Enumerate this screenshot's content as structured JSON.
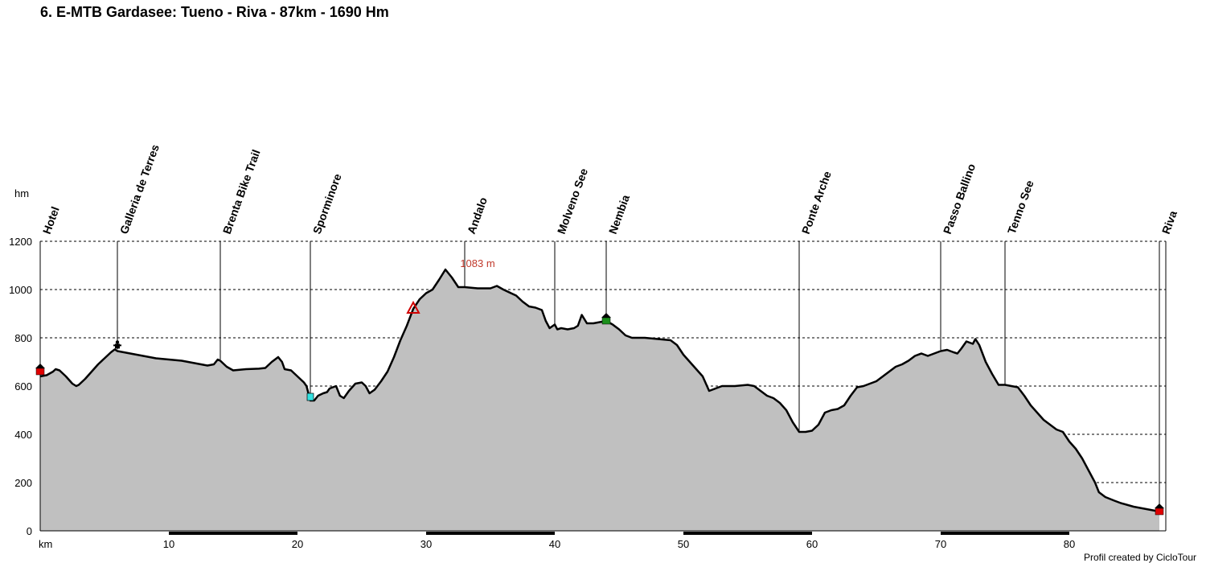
{
  "chart_data": {
    "type": "area",
    "title": "6. E-MTB Gardasee: Tueno - Riva - 87km - 1690 Hm",
    "xlabel": "km",
    "ylabel": "hm",
    "xlim": [
      0,
      87.5
    ],
    "ylim": [
      0,
      1200
    ],
    "x_ticks": [
      10,
      20,
      30,
      40,
      50,
      60,
      70,
      80
    ],
    "y_ticks": [
      0,
      200,
      400,
      600,
      800,
      1000,
      1200
    ],
    "grid": "horizontal-dashed",
    "fill_color": "#c0c0c0",
    "line_color": "#000000",
    "profile": [
      [
        0,
        640
      ],
      [
        0.5,
        645
      ],
      [
        1,
        660
      ],
      [
        1.2,
        670
      ],
      [
        1.5,
        665
      ],
      [
        2,
        640
      ],
      [
        2.5,
        610
      ],
      [
        2.8,
        600
      ],
      [
        3,
        605
      ],
      [
        3.5,
        630
      ],
      [
        4,
        660
      ],
      [
        4.5,
        690
      ],
      [
        5,
        715
      ],
      [
        5.5,
        740
      ],
      [
        5.8,
        752
      ],
      [
        6,
        745
      ],
      [
        6.5,
        740
      ],
      [
        7,
        735
      ],
      [
        8,
        725
      ],
      [
        9,
        715
      ],
      [
        10,
        710
      ],
      [
        11,
        705
      ],
      [
        12,
        695
      ],
      [
        13,
        685
      ],
      [
        13.5,
        690
      ],
      [
        13.8,
        710
      ],
      [
        14,
        705
      ],
      [
        14.5,
        680
      ],
      [
        15,
        665
      ],
      [
        16,
        670
      ],
      [
        17,
        672
      ],
      [
        17.5,
        675
      ],
      [
        18,
        700
      ],
      [
        18.5,
        720
      ],
      [
        18.8,
        700
      ],
      [
        19,
        670
      ],
      [
        19.5,
        665
      ],
      [
        20,
        640
      ],
      [
        20.5,
        615
      ],
      [
        20.7,
        600
      ],
      [
        21,
        540
      ],
      [
        21.3,
        540
      ],
      [
        21.6,
        560
      ],
      [
        22,
        570
      ],
      [
        22.3,
        575
      ],
      [
        22.5,
        590
      ],
      [
        23,
        600
      ],
      [
        23.3,
        560
      ],
      [
        23.6,
        550
      ],
      [
        24,
        580
      ],
      [
        24.5,
        610
      ],
      [
        25,
        615
      ],
      [
        25.3,
        600
      ],
      [
        25.6,
        570
      ],
      [
        26,
        585
      ],
      [
        26.5,
        620
      ],
      [
        27,
        660
      ],
      [
        27.5,
        720
      ],
      [
        28,
        790
      ],
      [
        28.5,
        850
      ],
      [
        29,
        920
      ],
      [
        29.5,
        960
      ],
      [
        30,
        985
      ],
      [
        30.5,
        1000
      ],
      [
        31,
        1040
      ],
      [
        31.5,
        1083
      ],
      [
        32,
        1050
      ],
      [
        32.5,
        1010
      ],
      [
        33,
        1010
      ],
      [
        34,
        1005
      ],
      [
        35,
        1005
      ],
      [
        35.5,
        1015
      ],
      [
        36,
        1000
      ],
      [
        37,
        975
      ],
      [
        37.5,
        950
      ],
      [
        38,
        930
      ],
      [
        38.5,
        925
      ],
      [
        39,
        915
      ],
      [
        39.3,
        870
      ],
      [
        39.6,
        840
      ],
      [
        40,
        855
      ],
      [
        40.2,
        835
      ],
      [
        40.5,
        840
      ],
      [
        41,
        835
      ],
      [
        41.5,
        840
      ],
      [
        41.8,
        850
      ],
      [
        42.1,
        895
      ],
      [
        42.5,
        860
      ],
      [
        43,
        860
      ],
      [
        43.5,
        865
      ],
      [
        44,
        870
      ],
      [
        44.5,
        855
      ],
      [
        45,
        835
      ],
      [
        45.5,
        810
      ],
      [
        46,
        800
      ],
      [
        47,
        800
      ],
      [
        48,
        795
      ],
      [
        49,
        790
      ],
      [
        49.5,
        770
      ],
      [
        50,
        730
      ],
      [
        50.5,
        700
      ],
      [
        51,
        670
      ],
      [
        51.5,
        640
      ],
      [
        52,
        580
      ],
      [
        52.5,
        590
      ],
      [
        53,
        600
      ],
      [
        54,
        600
      ],
      [
        55,
        605
      ],
      [
        55.5,
        600
      ],
      [
        56,
        580
      ],
      [
        56.5,
        560
      ],
      [
        57,
        550
      ],
      [
        57.5,
        530
      ],
      [
        58,
        500
      ],
      [
        58.5,
        450
      ],
      [
        59,
        410
      ],
      [
        59.5,
        410
      ],
      [
        60,
        415
      ],
      [
        60.5,
        440
      ],
      [
        61,
        490
      ],
      [
        61.5,
        500
      ],
      [
        62,
        505
      ],
      [
        62.5,
        520
      ],
      [
        63,
        560
      ],
      [
        63.5,
        595
      ],
      [
        64,
        600
      ],
      [
        64.5,
        610
      ],
      [
        65,
        620
      ],
      [
        65.5,
        640
      ],
      [
        66,
        660
      ],
      [
        66.5,
        680
      ],
      [
        67,
        690
      ],
      [
        67.5,
        705
      ],
      [
        68,
        725
      ],
      [
        68.5,
        735
      ],
      [
        69,
        725
      ],
      [
        69.5,
        735
      ],
      [
        70,
        745
      ],
      [
        70.5,
        750
      ],
      [
        71,
        740
      ],
      [
        71.3,
        735
      ],
      [
        71.6,
        755
      ],
      [
        72,
        785
      ],
      [
        72.5,
        775
      ],
      [
        72.7,
        795
      ],
      [
        73,
        770
      ],
      [
        73.5,
        700
      ],
      [
        74,
        650
      ],
      [
        74.5,
        605
      ],
      [
        75,
        605
      ],
      [
        75.5,
        600
      ],
      [
        76,
        595
      ],
      [
        76.5,
        560
      ],
      [
        77,
        520
      ],
      [
        77.5,
        490
      ],
      [
        78,
        460
      ],
      [
        78.5,
        440
      ],
      [
        79,
        420
      ],
      [
        79.5,
        410
      ],
      [
        80,
        370
      ],
      [
        80.5,
        340
      ],
      [
        81,
        300
      ],
      [
        81.5,
        250
      ],
      [
        82,
        200
      ],
      [
        82.3,
        160
      ],
      [
        82.8,
        140
      ],
      [
        83.5,
        125
      ],
      [
        84,
        115
      ],
      [
        85,
        100
      ],
      [
        86,
        90
      ],
      [
        86.5,
        85
      ],
      [
        87,
        80
      ]
    ],
    "annotations": {
      "max_label": "1083 m",
      "max_x": 31.5,
      "max_y": 1083
    },
    "waypoints": [
      {
        "name": "Hotel",
        "km": 0,
        "elev": 660,
        "marker": "house-red"
      },
      {
        "name": "Galleria de Terres",
        "km": 6,
        "elev": 752,
        "marker": "figure-black"
      },
      {
        "name": "Brenta Bike Trail",
        "km": 14,
        "elev": 710,
        "marker": ""
      },
      {
        "name": "Sporminore",
        "km": 21,
        "elev": 550,
        "marker": "cyan-square"
      },
      {
        "name": "Andalo",
        "km": 33,
        "elev": 1010,
        "marker": ""
      },
      {
        "name": "Molveno See",
        "km": 40,
        "elev": 855,
        "marker": ""
      },
      {
        "name": "Nembia",
        "km": 44,
        "elev": 870,
        "marker": "house-green"
      },
      {
        "name": "Ponte Arche",
        "km": 59,
        "elev": 410,
        "marker": ""
      },
      {
        "name": "Passo Ballino",
        "km": 70,
        "elev": 750,
        "marker": ""
      },
      {
        "name": "Tenno See",
        "km": 75,
        "elev": 605,
        "marker": ""
      },
      {
        "name": "Riva",
        "km": 87,
        "elev": 80,
        "marker": "house-red"
      }
    ],
    "extra_markers": [
      {
        "km": 29,
        "elev": 920,
        "marker": "triangle-red"
      }
    ],
    "axis_bar_segments": [
      [
        10,
        20
      ],
      [
        30,
        40
      ],
      [
        50,
        60
      ],
      [
        70,
        80
      ]
    ]
  },
  "credit": "Profil created by CicloTour"
}
